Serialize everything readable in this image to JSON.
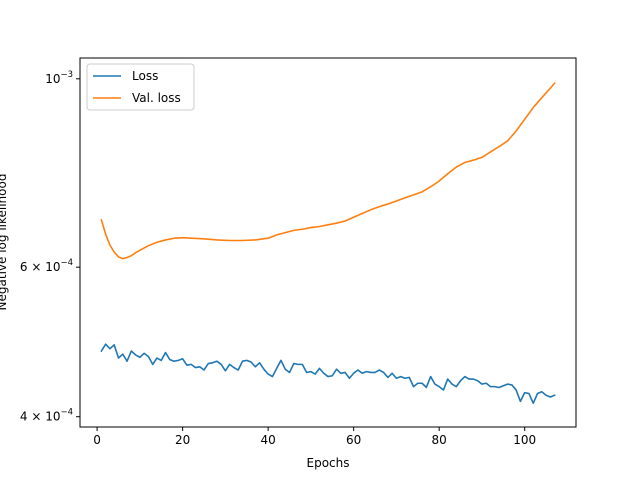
{
  "chart_data": {
    "type": "line",
    "xlabel": "Epochs",
    "ylabel": "Negative log likelihood",
    "yscale": "log",
    "xlim": [
      -4,
      112
    ],
    "ylim": [
      0.000389,
      0.001058
    ],
    "legend_position": "top-left",
    "grid": false,
    "x_ticks": [
      {
        "value": 0,
        "label": "0"
      },
      {
        "value": 20,
        "label": "20"
      },
      {
        "value": 40,
        "label": "40"
      },
      {
        "value": 60,
        "label": "60"
      },
      {
        "value": 80,
        "label": "80"
      },
      {
        "value": 100,
        "label": "100"
      }
    ],
    "y_ticks": [
      {
        "value": 0.0004,
        "label_coef": "4 × 10",
        "label_exp": "−4"
      },
      {
        "value": 0.0006,
        "label_coef": "6 × 10",
        "label_exp": "−4"
      },
      {
        "value": 0.001,
        "label_coef": "10",
        "label_exp": "−3"
      }
    ],
    "series": [
      {
        "name": "Loss",
        "color": "#1f77b4",
        "points": [
          [
            1,
            0.000478
          ],
          [
            2,
            0.000487
          ],
          [
            3,
            0.000481
          ],
          [
            4,
            0.000486
          ],
          [
            5,
            0.000469
          ],
          [
            6,
            0.000474
          ],
          [
            7,
            0.000465
          ],
          [
            8,
            0.000478
          ],
          [
            9,
            0.000473
          ],
          [
            10,
            0.00047
          ],
          [
            11,
            0.000475
          ],
          [
            12,
            0.000471
          ],
          [
            13,
            0.000461
          ],
          [
            14,
            0.000469
          ],
          [
            15,
            0.000466
          ],
          [
            16,
            0.000476
          ],
          [
            17,
            0.000467
          ],
          [
            18,
            0.000465
          ],
          [
            19,
            0.000466
          ],
          [
            20,
            0.000468
          ],
          [
            21,
            0.00046
          ],
          [
            22,
            0.000461
          ],
          [
            23,
            0.000457
          ],
          [
            24,
            0.000458
          ],
          [
            25,
            0.000454
          ],
          [
            26,
            0.000462
          ],
          [
            27,
            0.000463
          ],
          [
            28,
            0.000465
          ],
          [
            29,
            0.000461
          ],
          [
            30,
            0.000453
          ],
          [
            31,
            0.000461
          ],
          [
            32,
            0.000457
          ],
          [
            33,
            0.000454
          ],
          [
            34,
            0.000465
          ],
          [
            35,
            0.000466
          ],
          [
            36,
            0.000464
          ],
          [
            37,
            0.000458
          ],
          [
            38,
            0.000463
          ],
          [
            39,
            0.000455
          ],
          [
            40,
            0.000449
          ],
          [
            41,
            0.000446
          ],
          [
            42,
            0.000456
          ],
          [
            43,
            0.000466
          ],
          [
            44,
            0.000455
          ],
          [
            45,
            0.000451
          ],
          [
            46,
            0.000462
          ],
          [
            47,
            0.000461
          ],
          [
            48,
            0.000461
          ],
          [
            49,
            0.000451
          ],
          [
            50,
            0.000452
          ],
          [
            51,
            0.000449
          ],
          [
            52,
            0.000456
          ],
          [
            53,
            0.00045
          ],
          [
            54,
            0.000446
          ],
          [
            55,
            0.000447
          ],
          [
            56,
            0.000455
          ],
          [
            57,
            0.00045
          ],
          [
            58,
            0.000451
          ],
          [
            59,
            0.000444
          ],
          [
            60,
            0.00045
          ],
          [
            61,
            0.000454
          ],
          [
            62,
            0.00045
          ],
          [
            63,
            0.000452
          ],
          [
            64,
            0.000451
          ],
          [
            65,
            0.000451
          ],
          [
            66,
            0.000454
          ],
          [
            67,
            0.000451
          ],
          [
            68,
            0.000445
          ],
          [
            69,
            0.00045
          ],
          [
            70,
            0.000444
          ],
          [
            71,
            0.000446
          ],
          [
            72,
            0.000444
          ],
          [
            73,
            0.000445
          ],
          [
            74,
            0.000434
          ],
          [
            75,
            0.000438
          ],
          [
            76,
            0.000438
          ],
          [
            77,
            0.000433
          ],
          [
            78,
            0.000446
          ],
          [
            79,
            0.000437
          ],
          [
            80,
            0.000434
          ],
          [
            81,
            0.00043
          ],
          [
            82,
            0.000443
          ],
          [
            83,
            0.000437
          ],
          [
            84,
            0.000434
          ],
          [
            85,
            0.000441
          ],
          [
            86,
            0.000446
          ],
          [
            87,
            0.000443
          ],
          [
            88,
            0.000443
          ],
          [
            89,
            0.000441
          ],
          [
            90,
            0.000437
          ],
          [
            91,
            0.000438
          ],
          [
            92,
            0.000434
          ],
          [
            93,
            0.000434
          ],
          [
            94,
            0.000433
          ],
          [
            95,
            0.000435
          ],
          [
            96,
            0.000437
          ],
          [
            97,
            0.000436
          ],
          [
            98,
            0.00043
          ],
          [
            99,
            0.000417
          ],
          [
            100,
            0.000427
          ],
          [
            101,
            0.000426
          ],
          [
            102,
            0.000415
          ],
          [
            103,
            0.000426
          ],
          [
            104,
            0.000428
          ],
          [
            105,
            0.000424
          ],
          [
            106,
            0.000422
          ],
          [
            107,
            0.000424
          ]
        ]
      },
      {
        "name": "Val. loss",
        "color": "#ff7f0e",
        "points": [
          [
            1,
            0.000682
          ],
          [
            2,
            0.000656
          ],
          [
            3,
            0.000637
          ],
          [
            4,
            0.000625
          ],
          [
            5,
            0.000617
          ],
          [
            6,
            0.000614
          ],
          [
            7,
            0.000616
          ],
          [
            8,
            0.000619
          ],
          [
            9,
            0.000624
          ],
          [
            10,
            0.000628
          ],
          [
            12,
            0.000636
          ],
          [
            14,
            0.000642
          ],
          [
            16,
            0.000646
          ],
          [
            18,
            0.000649
          ],
          [
            20,
            0.00065
          ],
          [
            22,
            0.000649
          ],
          [
            25,
            0.000648
          ],
          [
            28,
            0.000646
          ],
          [
            31,
            0.000645
          ],
          [
            34,
            0.000645
          ],
          [
            37,
            0.000646
          ],
          [
            40,
            0.000649
          ],
          [
            42,
            0.000655
          ],
          [
            44,
            0.000659
          ],
          [
            46,
            0.000663
          ],
          [
            48,
            0.000665
          ],
          [
            50,
            0.000668
          ],
          [
            52,
            0.00067
          ],
          [
            54,
            0.000673
          ],
          [
            56,
            0.000676
          ],
          [
            58,
            0.00068
          ],
          [
            60,
            0.000687
          ],
          [
            62,
            0.000694
          ],
          [
            64,
            0.000701
          ],
          [
            66,
            0.000707
          ],
          [
            68,
            0.000712
          ],
          [
            70,
            0.000718
          ],
          [
            72,
            0.000724
          ],
          [
            74,
            0.00073
          ],
          [
            76,
            0.000736
          ],
          [
            78,
            0.000746
          ],
          [
            80,
            0.000758
          ],
          [
            82,
            0.000773
          ],
          [
            84,
            0.000787
          ],
          [
            86,
            0.000797
          ],
          [
            88,
            0.000802
          ],
          [
            90,
            0.000808
          ],
          [
            92,
            0.00082
          ],
          [
            94,
            0.000832
          ],
          [
            96,
            0.000845
          ],
          [
            98,
            0.000868
          ],
          [
            100,
            0.000896
          ],
          [
            102,
            0.000925
          ],
          [
            104,
            0.00095
          ],
          [
            106,
            0.000975
          ],
          [
            107,
            0.000988
          ]
        ]
      }
    ]
  }
}
